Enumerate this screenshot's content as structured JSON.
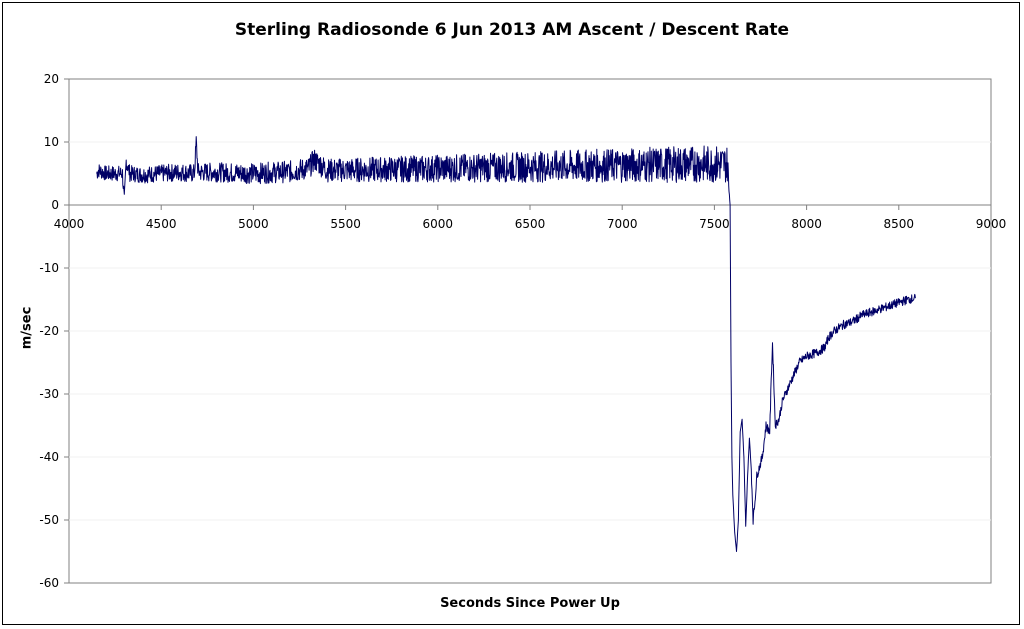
{
  "chart_data": {
    "type": "line",
    "title": "Sterling Radiosonde 6 Jun 2013 AM Ascent / Descent Rate",
    "xlabel": "Seconds Since Power Up",
    "ylabel": "m/sec",
    "xlim": [
      4000,
      9000
    ],
    "ylim": [
      -60,
      20
    ],
    "x_ticks": [
      4000,
      4500,
      5000,
      5500,
      6000,
      6500,
      7000,
      7500,
      8000,
      8500,
      9000
    ],
    "y_ticks": [
      20,
      10,
      0,
      -10,
      -20,
      -30,
      -40,
      -50,
      -60
    ],
    "x_tick_labels": [
      "4000",
      "4500",
      "5000",
      "5500",
      "6000",
      "6500",
      "7000",
      "7500",
      "8000",
      "8500",
      "9000"
    ],
    "y_tick_labels": [
      "20",
      "10",
      "0",
      "-10",
      "-20",
      "-30",
      "-40",
      "-50",
      "-60"
    ],
    "grid": true,
    "legend": "none",
    "series": [
      {
        "color": "#000066",
        "x": [
          4150,
          4160,
          4200,
          4250,
          4290,
          4300,
          4310,
          4330,
          4400,
          4500,
          4600,
          4680,
          4690,
          4700,
          4800,
          5000,
          5200,
          5300,
          5330,
          5400,
          5600,
          5800,
          6000,
          6200,
          6400,
          6600,
          6800,
          7000,
          7200,
          7400,
          7500,
          7570,
          7585,
          7590,
          7595,
          7600,
          7610,
          7620,
          7630,
          7640,
          7650,
          7660,
          7670,
          7680,
          7690,
          7700,
          7710,
          7720,
          7730,
          7740,
          7760,
          7780,
          7800,
          7810,
          7815,
          7820,
          7830,
          7850,
          7870,
          7900,
          7930,
          7960,
          8000,
          8050,
          8080,
          8100,
          8120,
          8150,
          8200,
          8250,
          8300,
          8350,
          8400,
          8450,
          8500,
          8550,
          8590
        ],
        "y": [
          5,
          5.5,
          5,
          5,
          5,
          0.5,
          7,
          5,
          4.8,
          5,
          5.2,
          5,
          10,
          5.2,
          5.2,
          5,
          5.3,
          5.8,
          7.2,
          5.5,
          5.6,
          5.7,
          5.8,
          5.9,
          6,
          6.1,
          6.2,
          6.3,
          6.4,
          6.5,
          6.5,
          6.5,
          0,
          -25,
          -40,
          -46,
          -52,
          -55,
          -50,
          -36,
          -34,
          -40,
          -51,
          -43,
          -37,
          -42,
          -50,
          -47,
          -43,
          -42,
          -40,
          -35,
          -36,
          -26,
          -22,
          -26,
          -35,
          -34,
          -31,
          -29,
          -27,
          -25,
          -24,
          -23.5,
          -23,
          -22.5,
          -21,
          -20,
          -19,
          -18.5,
          -17.5,
          -17,
          -16.5,
          -16,
          -15.5,
          -15,
          -14.8
        ]
      }
    ]
  }
}
